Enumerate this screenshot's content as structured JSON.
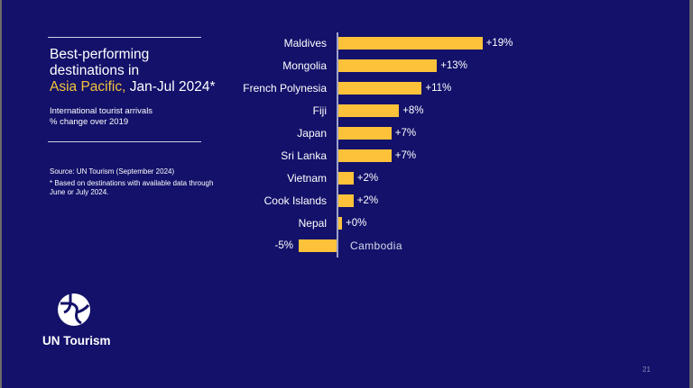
{
  "slide": {
    "title_line1": "Best-performing",
    "title_line2": "destinations in",
    "title_accent": "Asia Pacific,",
    "title_rest": " Jan-Jul 2024*",
    "subtitle_line1": "International tourist arrivals",
    "subtitle_line2": "% change over 2019",
    "source": "Source: UN Tourism (September 2024)",
    "footnote": "* Based on destinations with available data through June or July 2024.",
    "brand": "UN Tourism",
    "page_number": "21",
    "colors": {
      "background": "#13116a",
      "bar": "#fdc23a",
      "accent": "#f5c33b"
    }
  },
  "chart_data": {
    "type": "bar",
    "orientation": "horizontal",
    "title": "Best-performing destinations in Asia Pacific, Jan-Jul 2024*",
    "subtitle": "International tourist arrivals % change over 2019",
    "xlabel": "",
    "ylabel": "",
    "categories": [
      "Maldives",
      "Mongolia",
      "French Polynesia",
      "Fiji",
      "Japan",
      "Sri Lanka",
      "Vietnam",
      "Cook Islands",
      "Nepal",
      "Cambodia"
    ],
    "values": [
      19,
      13,
      11,
      8,
      7,
      7,
      2,
      2,
      0,
      -5
    ],
    "labels": [
      "+19%",
      "+13%",
      "+11%",
      "+8%",
      "+7%",
      "+7%",
      "+2%",
      "+2%",
      "+0%",
      "-5%"
    ],
    "grid": false,
    "legend": "none",
    "xlim": [
      -5,
      19
    ]
  }
}
